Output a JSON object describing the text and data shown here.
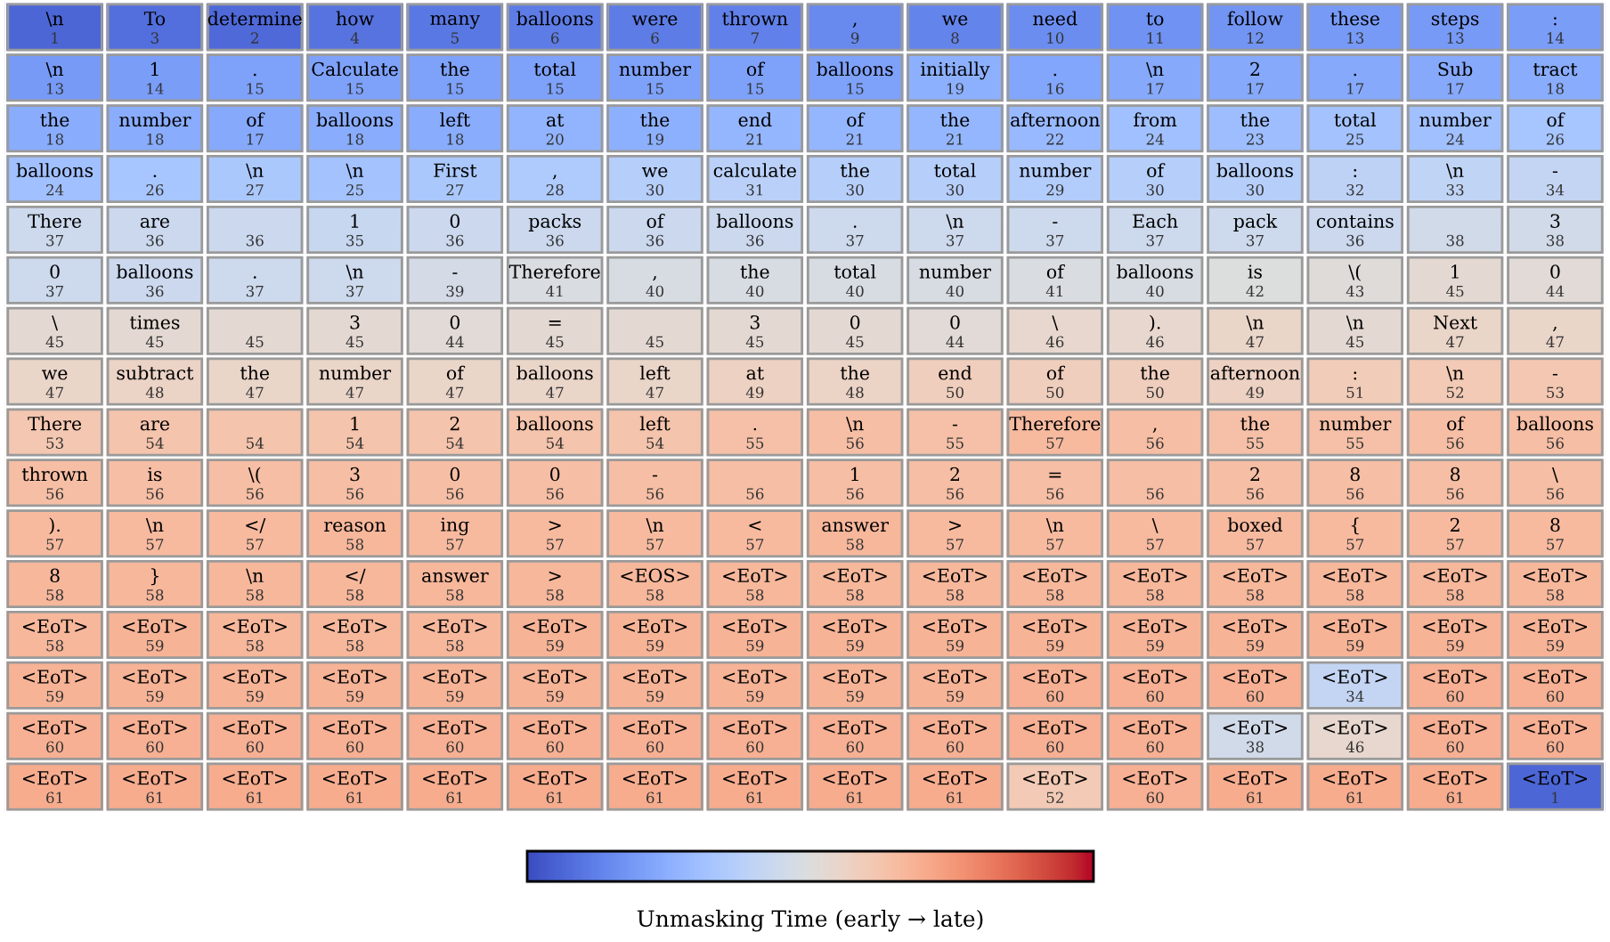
{
  "chart_data": {
    "type": "heatmap",
    "clabel": "Unmasking Time (early → late)",
    "data_labels": true,
    "categories": [
      null,
      null,
      null,
      null,
      null,
      null,
      null,
      null,
      null,
      null,
      null,
      null,
      null,
      null,
      null,
      null
    ],
    "y_categories": [
      null,
      null,
      null,
      null,
      null,
      null,
      null,
      null,
      null,
      null,
      null,
      null,
      null,
      null,
      null,
      null
    ],
    "cells": [
      [
        1,
        3,
        2,
        4,
        5,
        6,
        6,
        7,
        9,
        8,
        10,
        11,
        12,
        13,
        13,
        14
      ],
      [
        13,
        14,
        15,
        15,
        15,
        15,
        15,
        15,
        15,
        19,
        16,
        17,
        17,
        17,
        17,
        18
      ],
      [
        18,
        18,
        17,
        18,
        18,
        20,
        19,
        21,
        21,
        21,
        22,
        24,
        23,
        25,
        24,
        26
      ],
      [
        24,
        26,
        27,
        25,
        27,
        28,
        30,
        31,
        30,
        30,
        29,
        30,
        30,
        32,
        33,
        34
      ],
      [
        37,
        36,
        36,
        35,
        36,
        36,
        36,
        36,
        37,
        37,
        37,
        37,
        37,
        36,
        38,
        38
      ],
      [
        37,
        36,
        37,
        37,
        39,
        41,
        40,
        40,
        40,
        40,
        41,
        40,
        42,
        43,
        45,
        44
      ],
      [
        45,
        45,
        45,
        45,
        44,
        45,
        45,
        45,
        45,
        44,
        46,
        46,
        47,
        45,
        47,
        47
      ],
      [
        47,
        48,
        47,
        47,
        47,
        47,
        47,
        49,
        48,
        50,
        50,
        50,
        49,
        51,
        52,
        53
      ],
      [
        53,
        54,
        54,
        54,
        54,
        54,
        54,
        55,
        56,
        55,
        57,
        56,
        55,
        55,
        56,
        56
      ],
      [
        56,
        56,
        56,
        56,
        56,
        56,
        56,
        56,
        56,
        56,
        56,
        56,
        56,
        56,
        56,
        56
      ],
      [
        57,
        57,
        57,
        58,
        57,
        57,
        57,
        57,
        58,
        57,
        57,
        57,
        57,
        57,
        57,
        57
      ],
      [
        58,
        58,
        58,
        58,
        58,
        58,
        58,
        58,
        58,
        58,
        58,
        58,
        58,
        58,
        58,
        58
      ],
      [
        58,
        59,
        58,
        58,
        58,
        59,
        59,
        59,
        59,
        59,
        59,
        59,
        59,
        59,
        59,
        59
      ],
      [
        59,
        59,
        59,
        59,
        59,
        59,
        59,
        59,
        59,
        59,
        60,
        60,
        60,
        34,
        60,
        60
      ],
      [
        60,
        60,
        60,
        60,
        60,
        60,
        60,
        60,
        60,
        60,
        60,
        60,
        38,
        46,
        60,
        60
      ],
      [
        61,
        61,
        61,
        61,
        61,
        61,
        61,
        61,
        61,
        61,
        52,
        60,
        61,
        61,
        61,
        1
      ]
    ],
    "annotations": [
      "\\n",
      "To",
      "determine",
      "how",
      "many",
      "balloons",
      "were",
      "thrown",
      ",",
      "we",
      "need",
      "to",
      "follow",
      "these",
      "steps",
      ":",
      "\\n",
      "1",
      ".",
      "Calculate",
      "the",
      "total",
      "number",
      "of",
      "balloons",
      "initially",
      ".",
      "\\n",
      "2",
      ".",
      "Sub",
      "tract",
      "the",
      "number",
      "of",
      "balloons",
      "left",
      "at",
      "the",
      "end",
      "of",
      "the",
      "afternoon",
      "from",
      "the",
      "total",
      "number",
      "of",
      "balloons",
      ".",
      "\\n",
      "\\n",
      "First",
      ",",
      "we",
      "calculate",
      "the",
      "total",
      "number",
      "of",
      "balloons",
      ":",
      "\\n",
      "-",
      "There",
      "are",
      null,
      "1",
      "0",
      "packs",
      "of",
      "balloons",
      ".",
      "\\n",
      "-",
      "Each",
      "pack",
      "contains",
      null,
      "3",
      "0",
      "balloons",
      ".",
      "\\n",
      "-",
      "Therefore",
      ",",
      "the",
      "total",
      "number",
      "of",
      "balloons",
      "is",
      "\\(",
      "1",
      "0",
      "\\",
      "times",
      null,
      "3",
      "0",
      "=",
      null,
      "3",
      "0",
      "0",
      "\\",
      ").",
      "\\n",
      "\\n",
      "Next",
      ",",
      "we",
      "subtract",
      "the",
      "number",
      "of",
      "balloons",
      "left",
      "at",
      "the",
      "end",
      "of",
      "the",
      "afternoon",
      ":",
      "\\n",
      "-",
      "There",
      "are",
      null,
      "1",
      "2",
      "balloons",
      "left",
      ".",
      "\\n",
      "-",
      "Therefore",
      ",",
      "the",
      "number",
      "of",
      "balloons",
      "thrown",
      "is",
      "\\(",
      "3",
      "0",
      "0",
      "-",
      null,
      "1",
      "2",
      "=",
      null,
      "2",
      "8",
      "8",
      "\\",
      ").",
      "\\n",
      "</",
      "reason",
      "ing",
      ">",
      "\\n",
      "<",
      "answer",
      ">",
      "\\n",
      "\\",
      "boxed",
      "{",
      "2",
      "8",
      "8",
      "}",
      "\\n",
      "</",
      "answer",
      ">",
      "<EOS>",
      "<EoT>",
      "<EoT>",
      "<EoT>",
      "<EoT>",
      "<EoT>",
      "<EoT>",
      "<EoT>",
      "<EoT>",
      "<EoT>",
      "<EoT>",
      "<EoT>",
      "<EoT>",
      "<EoT>",
      "<EoT>",
      "<EoT>",
      "<EoT>",
      "<EoT>",
      "<EoT>",
      "<EoT>",
      "<EoT>",
      "<EoT>",
      "<EoT>",
      "<EoT>",
      "<EoT>",
      "<EoT>",
      "<EoT>",
      "<EoT>",
      "<EoT>",
      "<EoT>",
      "<EoT>",
      "<EoT>",
      "<EoT>",
      "<EoT>",
      "<EoT>",
      "<EoT>",
      "<EoT>",
      "<EoT>",
      "<EoT>",
      "<EoT>",
      "<EoT>",
      "<EoT>",
      "<EoT>",
      "<EoT>",
      "<EoT>",
      "<EoT>",
      "<EoT>",
      "<EoT>",
      "<EoT>",
      "<EoT>",
      "<EoT>",
      "<EoT>",
      "<EoT>",
      "<EoT>",
      "<EoT>",
      "<EoT>",
      "<EoT>",
      "<EoT>",
      "<EoT>",
      "<EoT>",
      "<EoT>",
      "<EoT>",
      "<EoT>",
      "<EoT>",
      "<EoT>",
      "<EoT>",
      "<EoT>",
      "<EoT>",
      "<EoT>",
      "<EoT>",
      "<EoT>",
      "<EoT>",
      "<EoT>",
      "<EoT>"
    ]
  }
}
